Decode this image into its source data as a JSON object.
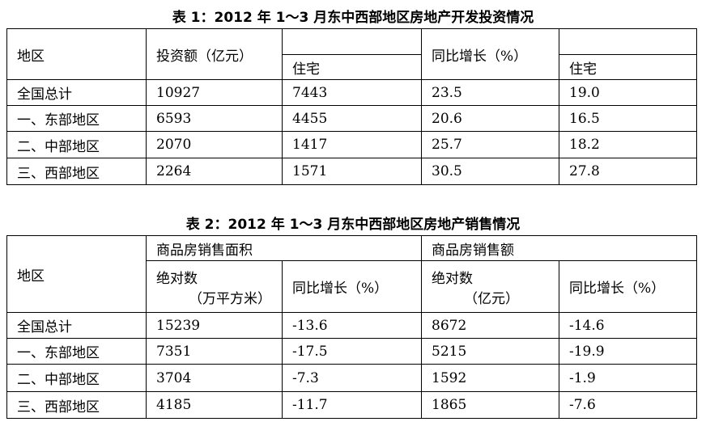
{
  "table1": {
    "title": "表 1：2012 年 1～3 月东中西部地区房地产开发投资情况",
    "header": {
      "region": "地区",
      "investment": "投资额（亿元）",
      "investment_residential": "住宅",
      "growth": "同比增长（%）",
      "growth_residential": "住宅"
    },
    "rows": [
      [
        "全国总计",
        "10927",
        "7443",
        "23.5",
        "19.0"
      ],
      [
        "一、东部地区",
        "6593",
        "4455",
        "20.6",
        "16.5"
      ],
      [
        "二、中部地区",
        "2070",
        "1417",
        "25.7",
        "18.2"
      ],
      [
        "三、西部地区",
        "2264",
        "1571",
        "30.5",
        "27.8"
      ]
    ]
  },
  "table2": {
    "title": "表 2：2012 年 1～3 月东中西部地区房地产销售情况",
    "header": {
      "region": "地区",
      "area": "商品房销售面积",
      "sales": "商品房销售额",
      "area_absolute": [
        "绝对数",
        "（万平方米）"
      ],
      "area_growth": "同比增长（%）",
      "sales_absolute": [
        "绝对数",
        "（亿元）"
      ],
      "sales_growth": "同比增长（%）"
    },
    "rows": [
      [
        "全国总计",
        "15239",
        "-13.6",
        "8672",
        "-14.6"
      ],
      [
        "一、东部地区",
        "7351",
        "-17.5",
        "5215",
        "-19.9"
      ],
      [
        "二、中部地区",
        "3704",
        "-7.3",
        "1592",
        "-1.9"
      ],
      [
        "三、西部地区",
        "4185",
        "-11.7",
        "1865",
        "-7.6"
      ]
    ]
  }
}
